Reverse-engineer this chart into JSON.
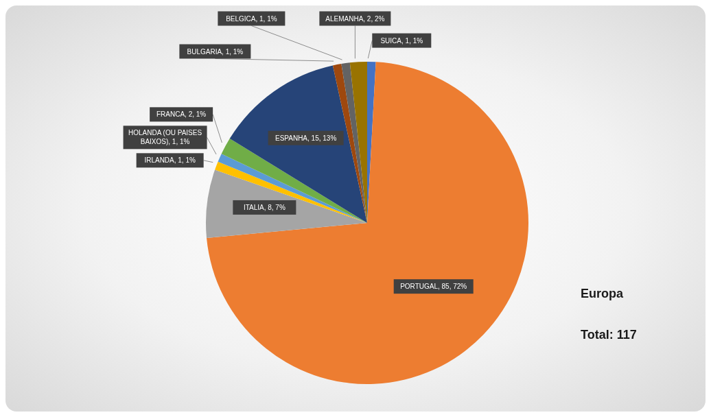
{
  "chart_data": {
    "type": "pie",
    "categories": [
      "SUICA",
      "PORTUGAL",
      "ITALIA",
      "IRLANDA",
      "HOLANDA (OU PAISES BAIXOS)",
      "FRANCA",
      "ESPANHA",
      "BULGARIA",
      "BELGICA",
      "ALEMANHA"
    ],
    "values": [
      1,
      85,
      8,
      1,
      1,
      2,
      15,
      1,
      1,
      2
    ],
    "colors": [
      "#4472c4",
      "#ed7d31",
      "#a5a5a5",
      "#ffc000",
      "#5b9bd5",
      "#70ad47",
      "#264478",
      "#9e480e",
      "#636363",
      "#997300"
    ],
    "value_labels": [
      "1, 1%",
      "85, 72%",
      "8, 7%",
      "1, 1%",
      "1, 1%",
      "2, 1%",
      "15, 13%",
      "1, 1%",
      "1, 1%",
      "2, 2%"
    ],
    "annotations": [
      "Europa",
      "Total: 117"
    ]
  }
}
